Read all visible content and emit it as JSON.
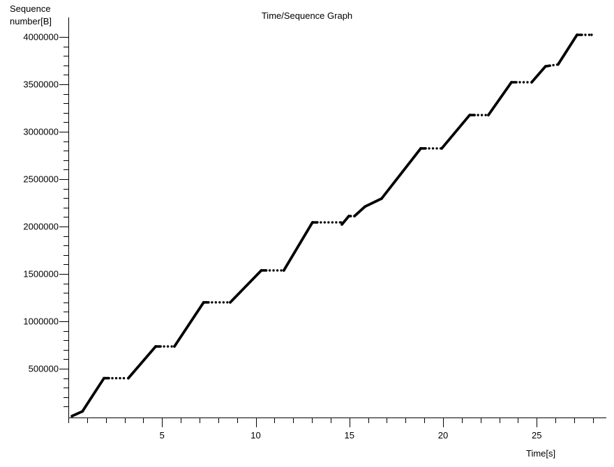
{
  "title": "Time/Sequence Graph",
  "y_axis_label_line1": "Sequence",
  "y_axis_label_line2": "number[B]",
  "x_axis_label": "Time[s]",
  "chart_data": {
    "type": "scatter",
    "title": "Time/Sequence Graph",
    "xlabel": "Time[s]",
    "ylabel": "Sequence number[B]",
    "xlim": [
      0,
      28.6
    ],
    "ylim": [
      0,
      4200000
    ],
    "grid": false,
    "legend": false,
    "point_color": "#000000",
    "background_color": "#ffffff",
    "x_axis": {
      "minor_step": 1,
      "minor_range": [
        0,
        28
      ],
      "major_ticks": [
        5,
        10,
        15,
        20,
        25
      ],
      "major_labels": [
        "5",
        "10",
        "15",
        "20",
        "25"
      ]
    },
    "y_axis": {
      "minor_step": 100000,
      "minor_range": [
        100000,
        4000000
      ],
      "major_ticks": [
        500000,
        1000000,
        1500000,
        2000000,
        2500000,
        3000000,
        3500000,
        4000000
      ],
      "major_labels": [
        "500000",
        "1000000",
        "1500000",
        "2000000",
        "2500000",
        "3000000",
        "3500000",
        "4000000"
      ]
    },
    "series_name": "tcp-sequence-trace",
    "segments": [
      {
        "style": "solid",
        "x1": 0.19,
        "y1": 0,
        "x2": 0.75,
        "y2": 50000
      },
      {
        "style": "solid",
        "x1": 0.75,
        "y1": 50000,
        "x2": 1.9,
        "y2": 400000
      },
      {
        "style": "dots",
        "x1": 1.9,
        "y1": 400000,
        "x2": 3.2,
        "y2": 400000
      },
      {
        "style": "solid",
        "x1": 3.2,
        "y1": 400000,
        "x2": 4.66,
        "y2": 735000
      },
      {
        "style": "dots",
        "x1": 4.66,
        "y1": 735000,
        "x2": 5.66,
        "y2": 735000
      },
      {
        "style": "solid",
        "x1": 5.66,
        "y1": 735000,
        "x2": 7.22,
        "y2": 1200000
      },
      {
        "style": "dots",
        "x1": 7.22,
        "y1": 1200000,
        "x2": 8.64,
        "y2": 1200000
      },
      {
        "style": "solid",
        "x1": 8.64,
        "y1": 1200000,
        "x2": 10.3,
        "y2": 1537000
      },
      {
        "style": "dots",
        "x1": 10.3,
        "y1": 1537000,
        "x2": 11.5,
        "y2": 1537000
      },
      {
        "style": "solid",
        "x1": 11.5,
        "y1": 1537000,
        "x2": 13.03,
        "y2": 2044000
      },
      {
        "style": "dots",
        "x1": 13.03,
        "y1": 2044000,
        "x2": 14.55,
        "y2": 2044000
      },
      {
        "style": "solid",
        "x1": 14.6,
        "y1": 2022000,
        "x2": 14.97,
        "y2": 2110000
      },
      {
        "style": "dots",
        "x1": 14.97,
        "y1": 2110000,
        "x2": 15.27,
        "y2": 2110000
      },
      {
        "style": "solid",
        "x1": 15.27,
        "y1": 2110000,
        "x2": 15.83,
        "y2": 2210000
      },
      {
        "style": "solid",
        "x1": 15.83,
        "y1": 2210000,
        "x2": 16.72,
        "y2": 2295000
      },
      {
        "style": "solid",
        "x1": 16.72,
        "y1": 2295000,
        "x2": 18.81,
        "y2": 2824000
      },
      {
        "style": "dots",
        "x1": 18.81,
        "y1": 2824000,
        "x2": 19.93,
        "y2": 2824000
      },
      {
        "style": "solid",
        "x1": 19.93,
        "y1": 2824000,
        "x2": 21.42,
        "y2": 3176000
      },
      {
        "style": "dots",
        "x1": 21.42,
        "y1": 3176000,
        "x2": 22.42,
        "y2": 3176000
      },
      {
        "style": "solid",
        "x1": 22.42,
        "y1": 3176000,
        "x2": 23.65,
        "y2": 3522000
      },
      {
        "style": "dots",
        "x1": 23.65,
        "y1": 3522000,
        "x2": 24.73,
        "y2": 3522000
      },
      {
        "style": "solid",
        "x1": 24.73,
        "y1": 3522000,
        "x2": 25.47,
        "y2": 3690000
      },
      {
        "style": "dots",
        "x1": 25.47,
        "y1": 3690000,
        "x2": 26.14,
        "y2": 3710000
      },
      {
        "style": "solid",
        "x1": 26.14,
        "y1": 3710000,
        "x2": 27.15,
        "y2": 4022000
      },
      {
        "style": "dots",
        "x1": 27.15,
        "y1": 4022000,
        "x2": 27.93,
        "y2": 4022000
      }
    ]
  }
}
